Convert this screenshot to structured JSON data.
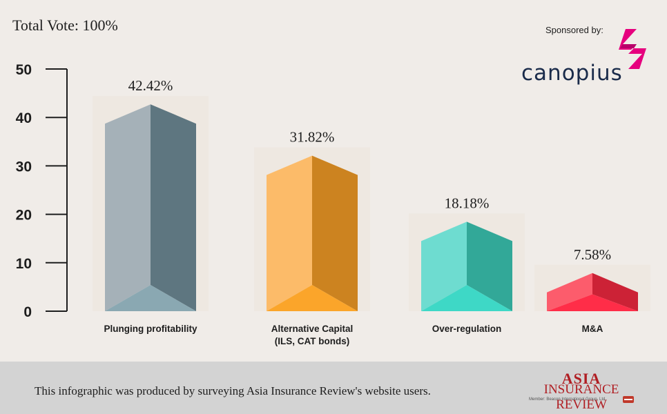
{
  "header": {
    "total_vote": "Total Vote: 100%"
  },
  "sponsor": {
    "label": "Sponsored by:",
    "name": "canopius"
  },
  "footer": {
    "note": "This infographic was produced by surveying Asia Insurance Review's website users.",
    "logo_line1": "ASIA",
    "logo_line2": "INSURANCE REVIEW",
    "logo_member": "Member: Beacon International Group, Ltd."
  },
  "colors": {
    "background": "#f0ece8",
    "footer": "#d3d3d3",
    "sponsor_pink": "#e6007e",
    "sponsor_navy": "#1a2b4a"
  },
  "chart_data": {
    "type": "bar",
    "title": "",
    "xlabel": "",
    "ylabel": "",
    "ylim": [
      0,
      50
    ],
    "yticks": [
      0,
      10,
      20,
      30,
      40,
      50
    ],
    "categories": [
      "Plunging profitability",
      "Alternative Capital\n(ILS, CAT bonds)",
      "Over-regulation",
      "M&A"
    ],
    "values": [
      42.42,
      31.82,
      18.18,
      7.58
    ],
    "data_labels": [
      "42.42%",
      "31.82%",
      "18.18%",
      "7.58%"
    ],
    "bar_colors": [
      {
        "light": "#a5b1b8",
        "dark": "#5e7680",
        "bottom": "#8aa8b2"
      },
      {
        "light": "#fcbb69",
        "dark": "#cc8320",
        "bottom": "#fba52a"
      },
      {
        "light": "#6edcd0",
        "dark": "#32a898",
        "bottom": "#3ed8c6"
      },
      {
        "light": "#fc5c6c",
        "dark": "#cc2236",
        "bottom": "#ff2d48"
      }
    ]
  }
}
